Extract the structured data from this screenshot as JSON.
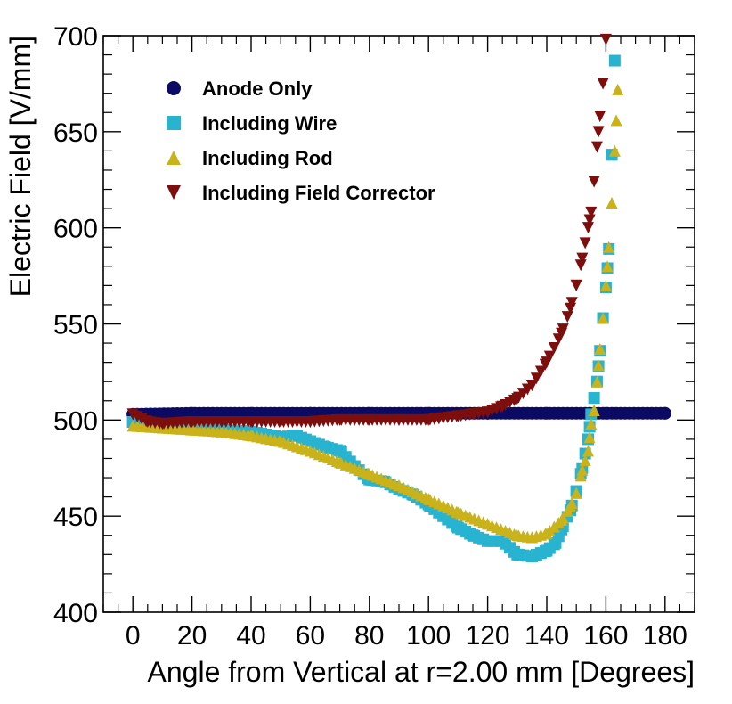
{
  "chart_data": {
    "type": "scatter",
    "title": "",
    "xlabel": "Angle from Vertical at r=2.00 mm [Degrees]",
    "ylabel": "Electric Field [V/mm]",
    "xlim": [
      -10,
      190
    ],
    "ylim": [
      400,
      700
    ],
    "xticks": [
      0,
      20,
      40,
      60,
      80,
      100,
      120,
      140,
      160,
      180
    ],
    "yticks": [
      400,
      450,
      500,
      550,
      600,
      650,
      700
    ],
    "grid": false,
    "legend_position": "top-left",
    "series": [
      {
        "name": "Anode Only",
        "marker": "circle",
        "color": "#0b0b63",
        "points": [
          [
            0,
            503
          ],
          [
            20,
            503.5
          ],
          [
            40,
            503.5
          ],
          [
            60,
            503.5
          ],
          [
            80,
            503.5
          ],
          [
            100,
            503.5
          ],
          [
            120,
            503.5
          ],
          [
            140,
            503.5
          ],
          [
            160,
            503.5
          ],
          [
            180,
            503.5
          ]
        ]
      },
      {
        "name": "Including Wire",
        "marker": "square",
        "color": "#28b3d1",
        "points": [
          [
            0,
            499
          ],
          [
            10,
            497
          ],
          [
            20,
            496
          ],
          [
            30,
            495
          ],
          [
            40,
            494
          ],
          [
            50,
            491
          ],
          [
            55,
            492
          ],
          [
            60,
            489
          ],
          [
            65,
            486
          ],
          [
            70,
            484
          ],
          [
            75,
            476
          ],
          [
            80,
            469
          ],
          [
            85,
            468
          ],
          [
            90,
            464
          ],
          [
            95,
            461
          ],
          [
            100,
            456
          ],
          [
            105,
            450
          ],
          [
            110,
            444
          ],
          [
            115,
            440
          ],
          [
            120,
            437
          ],
          [
            125,
            437
          ],
          [
            130,
            430
          ],
          [
            135,
            429
          ],
          [
            140,
            432
          ],
          [
            143,
            436
          ],
          [
            145,
            443
          ],
          [
            148,
            453
          ],
          [
            150,
            463
          ],
          [
            152,
            475
          ],
          [
            154,
            490
          ],
          [
            155,
            503
          ],
          [
            157,
            520
          ],
          [
            158,
            536
          ],
          [
            159,
            553
          ],
          [
            160,
            569
          ],
          [
            161,
            589
          ],
          [
            162,
            638
          ],
          [
            163,
            687
          ]
        ]
      },
      {
        "name": "Including Rod",
        "marker": "triangle-up",
        "color": "#c9b21a",
        "points": [
          [
            0,
            497
          ],
          [
            10,
            496
          ],
          [
            20,
            495
          ],
          [
            30,
            494
          ],
          [
            40,
            492
          ],
          [
            50,
            489
          ],
          [
            60,
            484
          ],
          [
            70,
            478
          ],
          [
            80,
            472
          ],
          [
            90,
            466
          ],
          [
            100,
            459
          ],
          [
            110,
            452
          ],
          [
            120,
            446
          ],
          [
            130,
            440
          ],
          [
            135,
            439
          ],
          [
            140,
            441
          ],
          [
            145,
            448
          ],
          [
            148,
            455
          ],
          [
            150,
            462
          ],
          [
            152,
            474
          ],
          [
            154,
            484
          ],
          [
            155,
            498
          ],
          [
            156,
            505
          ],
          [
            157,
            520
          ],
          [
            158,
            537
          ],
          [
            159,
            553
          ],
          [
            160,
            570
          ],
          [
            161,
            590
          ],
          [
            162,
            613
          ],
          [
            163,
            640
          ],
          [
            164,
            672
          ]
        ]
      },
      {
        "name": "Including Field Corrector",
        "marker": "triangle-down",
        "color": "#7d0e0e",
        "points": [
          [
            0,
            503
          ],
          [
            5,
            499
          ],
          [
            10,
            498
          ],
          [
            20,
            499
          ],
          [
            30,
            499
          ],
          [
            40,
            499
          ],
          [
            50,
            499
          ],
          [
            60,
            499
          ],
          [
            70,
            500
          ],
          [
            80,
            500
          ],
          [
            90,
            500
          ],
          [
            100,
            500
          ],
          [
            110,
            502
          ],
          [
            115,
            503
          ],
          [
            120,
            504
          ],
          [
            125,
            507
          ],
          [
            130,
            511
          ],
          [
            135,
            518
          ],
          [
            140,
            530
          ],
          [
            145,
            545
          ],
          [
            148,
            558
          ],
          [
            150,
            570
          ],
          [
            152,
            584
          ],
          [
            154,
            600
          ],
          [
            155,
            608
          ],
          [
            156,
            624
          ],
          [
            157,
            642
          ],
          [
            158,
            658
          ],
          [
            159,
            675
          ],
          [
            160,
            698
          ]
        ]
      }
    ]
  }
}
